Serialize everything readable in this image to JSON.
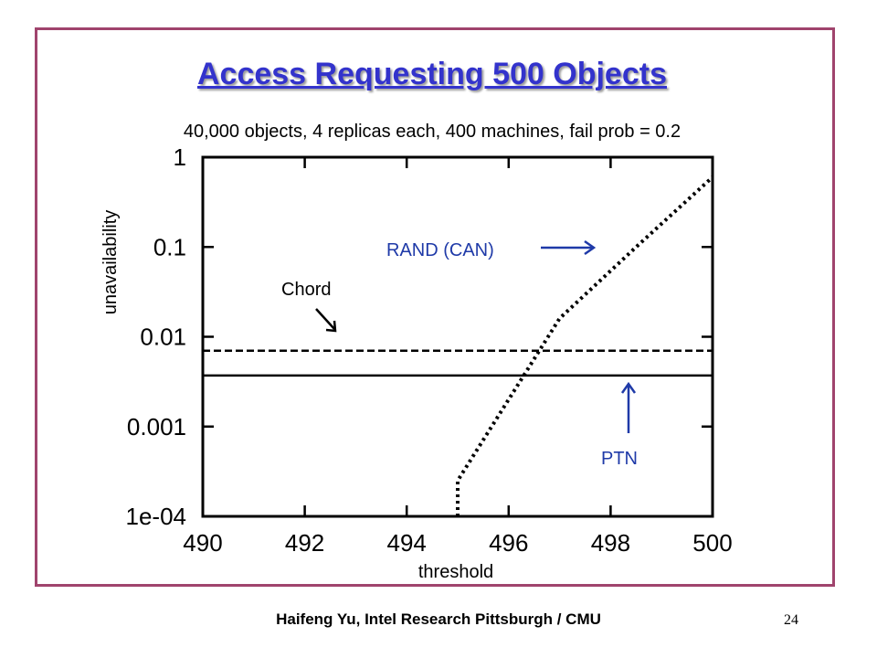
{
  "slide": {
    "title": "Access Requesting 500 Objects",
    "subtitle": "40,000 objects, 4 replicas each, 400 machines, fail prob = 0.2",
    "footer": "Haifeng Yu, Intel Research Pittsburgh / CMU",
    "page_number": "24",
    "frame_color": "#a0446d",
    "title_color": "#3333cc",
    "annotation_color": "#1f3aa8"
  },
  "chart_data": {
    "type": "line",
    "title": "",
    "xlabel": "threshold",
    "ylabel": "unavailability",
    "xlim": [
      490,
      500
    ],
    "ylim": [
      0.0001,
      1
    ],
    "yscale": "log",
    "xticks": [
      490,
      492,
      494,
      496,
      498,
      500
    ],
    "xtick_labels": [
      "490",
      "492",
      "494",
      "496",
      "498",
      "500"
    ],
    "yticks": [
      1,
      0.1,
      0.01,
      0.001,
      0.0001
    ],
    "ytick_labels": [
      "1",
      "0.1",
      "0.01",
      "0.001",
      "1e-04"
    ],
    "grid": false,
    "series": [
      {
        "name": "RAND (CAN)",
        "style": "dotted",
        "x": [
          495,
          495,
          497,
          498.5,
          500
        ],
        "y": [
          0.0001,
          0.00025,
          0.016,
          0.1,
          0.6
        ]
      },
      {
        "name": "Chord",
        "style": "dashed",
        "x": [
          490,
          500
        ],
        "y": [
          0.007,
          0.007
        ]
      },
      {
        "name": "PTN",
        "style": "solid",
        "x": [
          490,
          500
        ],
        "y": [
          0.0037,
          0.0037
        ]
      }
    ],
    "annotations": {
      "rand": "RAND (CAN)",
      "chord": "Chord",
      "ptn": "PTN"
    }
  }
}
